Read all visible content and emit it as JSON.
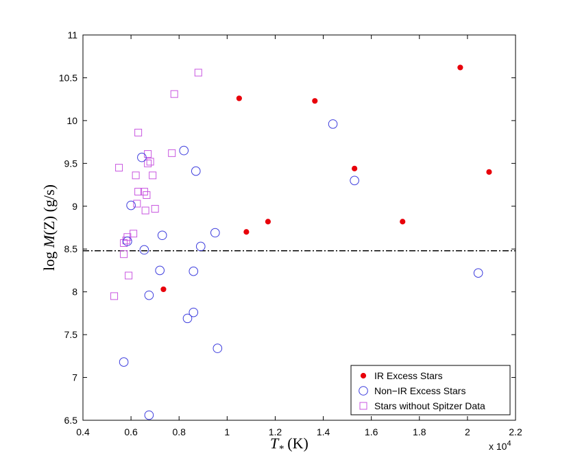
{
  "chart_data": {
    "type": "scatter",
    "xlabel_main": "T",
    "xlabel_sub": "*",
    "xlabel_unit": " (K)",
    "ylabel_pre": "log ",
    "ylabel_m": "M",
    "ylabel_dot": "˙",
    "ylabel_post": "(Z)  (g/s)",
    "x_multiplier": "x 10",
    "x_multiplier_exp": "4",
    "xlim": [
      0.4,
      2.2
    ],
    "ylim": [
      6.5,
      11
    ],
    "x_ticks": [
      "0.4",
      "0.6",
      "0.8",
      "1",
      "1.2",
      "1.4",
      "1.6",
      "1.8",
      "2",
      "2.2"
    ],
    "y_ticks": [
      "6.5",
      "7",
      "7.5",
      "8",
      "8.5",
      "9",
      "9.5",
      "10",
      "10.5",
      "11"
    ],
    "hline": {
      "y": 8.48,
      "style": "dash-dot"
    },
    "grid": false,
    "legend_position": "bottom-right",
    "series": [
      {
        "name": "IR Excess Stars",
        "marker": "filled-circle",
        "color": "#e8000b",
        "points": [
          [
            0.735,
            8.03
          ],
          [
            1.05,
            10.26
          ],
          [
            1.08,
            8.7
          ],
          [
            1.17,
            8.82
          ],
          [
            1.365,
            10.23
          ],
          [
            1.53,
            9.44
          ],
          [
            1.73,
            8.82
          ],
          [
            1.97,
            10.62
          ],
          [
            2.09,
            9.4
          ]
        ]
      },
      {
        "name": "Non−IR Excess Stars",
        "marker": "open-circle",
        "color": "#3b3bdd",
        "points": [
          [
            0.57,
            7.18
          ],
          [
            0.585,
            8.59
          ],
          [
            0.6,
            9.01
          ],
          [
            0.645,
            9.57
          ],
          [
            0.655,
            8.49
          ],
          [
            0.675,
            7.96
          ],
          [
            0.675,
            6.56
          ],
          [
            0.72,
            8.25
          ],
          [
            0.73,
            8.66
          ],
          [
            0.82,
            9.65
          ],
          [
            0.835,
            7.69
          ],
          [
            0.86,
            8.24
          ],
          [
            0.86,
            7.76
          ],
          [
            0.87,
            9.41
          ],
          [
            0.89,
            8.53
          ],
          [
            0.95,
            8.69
          ],
          [
            0.96,
            7.34
          ],
          [
            1.44,
            9.96
          ],
          [
            1.53,
            9.3
          ],
          [
            2.045,
            8.22
          ]
        ]
      },
      {
        "name": "Stars without Spitzer Data",
        "marker": "open-square",
        "color": "#c855e0",
        "points": [
          [
            0.53,
            7.95
          ],
          [
            0.55,
            9.45
          ],
          [
            0.57,
            8.44
          ],
          [
            0.57,
            8.57
          ],
          [
            0.58,
            8.6
          ],
          [
            0.585,
            8.64
          ],
          [
            0.59,
            8.19
          ],
          [
            0.61,
            8.68
          ],
          [
            0.62,
            9.36
          ],
          [
            0.625,
            9.03
          ],
          [
            0.63,
            9.86
          ],
          [
            0.63,
            9.17
          ],
          [
            0.655,
            9.17
          ],
          [
            0.66,
            8.95
          ],
          [
            0.665,
            9.13
          ],
          [
            0.67,
            9.61
          ],
          [
            0.67,
            9.5
          ],
          [
            0.68,
            9.52
          ],
          [
            0.69,
            9.36
          ],
          [
            0.7,
            8.97
          ],
          [
            0.77,
            9.62
          ],
          [
            0.78,
            10.31
          ],
          [
            0.88,
            10.56
          ]
        ]
      }
    ]
  }
}
